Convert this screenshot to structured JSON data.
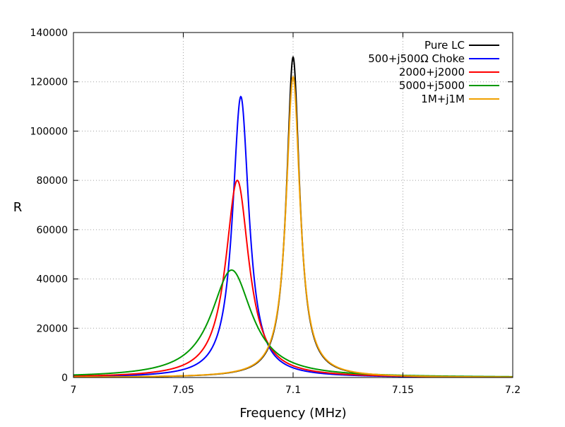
{
  "chart_data": {
    "type": "line",
    "title": "",
    "xlabel": "Frequency (MHz)",
    "ylabel": "R",
    "xlim": [
      7.0,
      7.2
    ],
    "ylim": [
      0,
      140000
    ],
    "grid": true,
    "legend_position": "top-right",
    "x_ticks": [
      "7",
      "7.05",
      "7.1",
      "7.15",
      "7.2"
    ],
    "x_tick_values": [
      7.0,
      7.05,
      7.1,
      7.15,
      7.2
    ],
    "y_ticks": [
      "0",
      "20000",
      "40000",
      "60000",
      "80000",
      "100000",
      "120000",
      "140000"
    ],
    "y_tick_values": [
      0,
      20000,
      40000,
      60000,
      80000,
      100000,
      120000,
      140000
    ],
    "series": [
      {
        "name": "Pure LC",
        "color": "#000000",
        "peak_frequency": 7.1,
        "peak_R": 130000,
        "half_width": 0.0036
      },
      {
        "name": "500+j500Ω Choke",
        "color": "#0000ff",
        "peak_frequency": 7.0762,
        "peak_R": 114000,
        "half_width": 0.0045
      },
      {
        "name": "2000+j2000",
        "color": "#ff0000",
        "peak_frequency": 7.0746,
        "peak_R": 80000,
        "half_width": 0.0064
      },
      {
        "name": "5000+j5000",
        "color": "#009900",
        "peak_frequency": 7.072,
        "peak_R": 43600,
        "half_width": 0.0112
      },
      {
        "name": "1M+j1M",
        "color": "#f0a000",
        "peak_frequency": 7.1,
        "peak_R": 122000,
        "half_width": 0.0038
      }
    ]
  }
}
